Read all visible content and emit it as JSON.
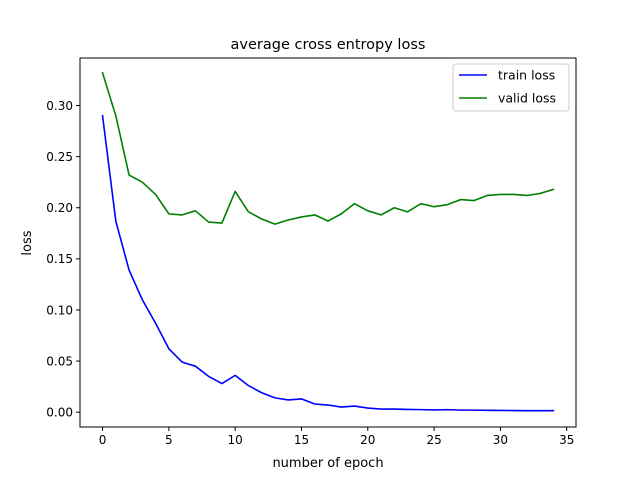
{
  "colors": {
    "train": "#0000ff",
    "valid": "#008000",
    "axis": "#000000",
    "background": "#ffffff"
  },
  "chart_data": {
    "type": "line",
    "title": "average cross entropy loss",
    "xlabel": "number of epoch",
    "ylabel": "loss",
    "xlim": [
      -1.7,
      35.7
    ],
    "ylim": [
      -0.0145,
      0.3465
    ],
    "grid": false,
    "legend_position": "top-right",
    "x_ticks": [
      0,
      5,
      10,
      15,
      20,
      25,
      30,
      35
    ],
    "x_tick_labels": [
      "0",
      "5",
      "10",
      "15",
      "20",
      "25",
      "30",
      "35"
    ],
    "y_ticks": [
      0.0,
      0.05,
      0.1,
      0.15,
      0.2,
      0.25,
      0.3
    ],
    "y_tick_labels": [
      "0.00",
      "0.05",
      "0.10",
      "0.15",
      "0.20",
      "0.25",
      "0.30"
    ],
    "x": [
      0,
      1,
      2,
      3,
      4,
      5,
      6,
      7,
      8,
      9,
      10,
      11,
      12,
      13,
      14,
      15,
      16,
      17,
      18,
      19,
      20,
      21,
      22,
      23,
      24,
      25,
      26,
      27,
      28,
      29,
      30,
      31,
      32,
      33,
      34
    ],
    "series": [
      {
        "name": "train loss",
        "color": "#0000ff",
        "values": [
          0.29,
          0.187,
          0.139,
          0.11,
          0.087,
          0.062,
          0.049,
          0.045,
          0.035,
          0.028,
          0.036,
          0.026,
          0.019,
          0.014,
          0.012,
          0.013,
          0.008,
          0.007,
          0.005,
          0.006,
          0.004,
          0.003,
          0.003,
          0.0027,
          0.0025,
          0.0022,
          0.0025,
          0.002,
          0.002,
          0.0018,
          0.0017,
          0.0016,
          0.0015,
          0.0015,
          0.0015
        ]
      },
      {
        "name": "valid loss",
        "color": "#008000",
        "values": [
          0.332,
          0.29,
          0.232,
          0.225,
          0.213,
          0.194,
          0.193,
          0.197,
          0.186,
          0.185,
          0.216,
          0.196,
          0.189,
          0.184,
          0.188,
          0.191,
          0.193,
          0.187,
          0.194,
          0.204,
          0.197,
          0.193,
          0.2,
          0.196,
          0.204,
          0.201,
          0.203,
          0.208,
          0.207,
          0.212,
          0.213,
          0.213,
          0.212,
          0.214,
          0.218
        ]
      }
    ]
  }
}
